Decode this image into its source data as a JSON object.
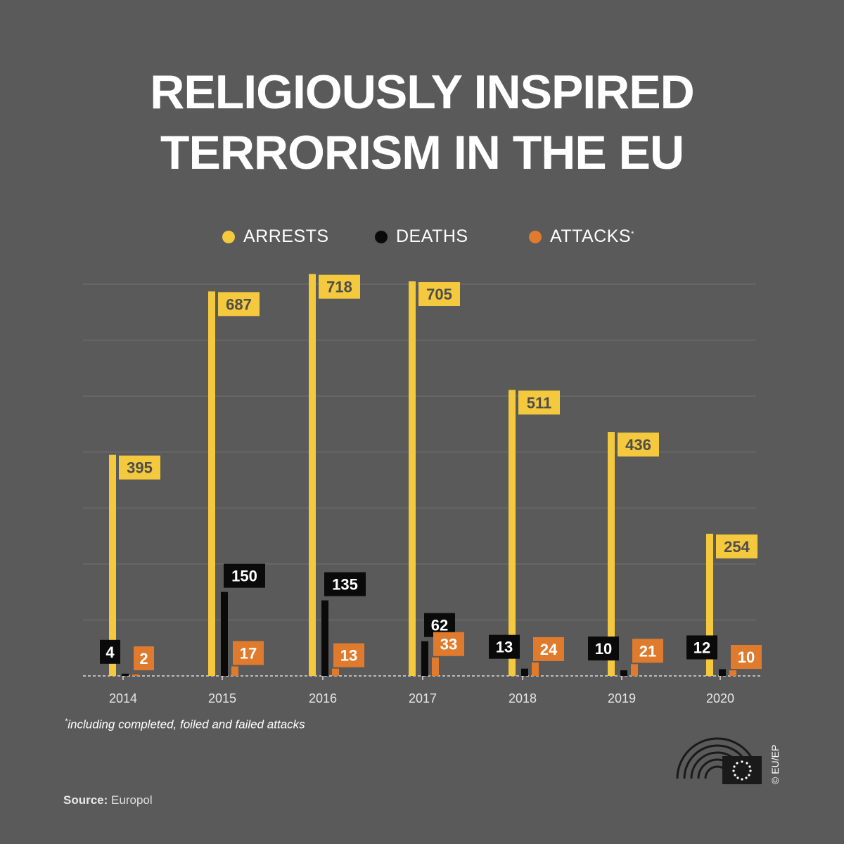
{
  "title": {
    "line1": "RELIGIOUSLY INSPIRED",
    "line2": "TERRORISM IN THE EU"
  },
  "legend": {
    "arrests": "ARRESTS",
    "deaths": "DEATHS",
    "attacks": "ATTACKS",
    "attacks_marker": "*"
  },
  "colors": {
    "background": "#5a5a5a",
    "arrests": "#f5c93d",
    "deaths": "#0a0a0a",
    "attacks": "#e07b2e",
    "label_text_on_yellow": "#4d4d4d",
    "grid": "#737373",
    "axis": "#d9d9d9"
  },
  "footnote": {
    "marker": "*",
    "text": "including completed, foiled and failed attacks"
  },
  "source": {
    "label": "Source:",
    "value": "Europol"
  },
  "credit": "© EU/EP",
  "chart_data": {
    "type": "bar",
    "categories": [
      "2014",
      "2015",
      "2016",
      "2017",
      "2018",
      "2019",
      "2020"
    ],
    "series": [
      {
        "name": "ARRESTS",
        "key": "arrests",
        "values": [
          395,
          687,
          718,
          705,
          511,
          436,
          254
        ]
      },
      {
        "name": "DEATHS",
        "key": "deaths",
        "values": [
          4,
          150,
          135,
          62,
          13,
          10,
          12
        ]
      },
      {
        "name": "ATTACKS",
        "key": "attacks",
        "values": [
          2,
          17,
          13,
          33,
          24,
          21,
          10
        ]
      }
    ],
    "title": "RELIGIOUSLY INSPIRED TERRORISM IN THE EU",
    "xlabel": "",
    "ylabel": "",
    "ylim": [
      0,
      700
    ],
    "grid": true,
    "legend_position": "top-center"
  }
}
